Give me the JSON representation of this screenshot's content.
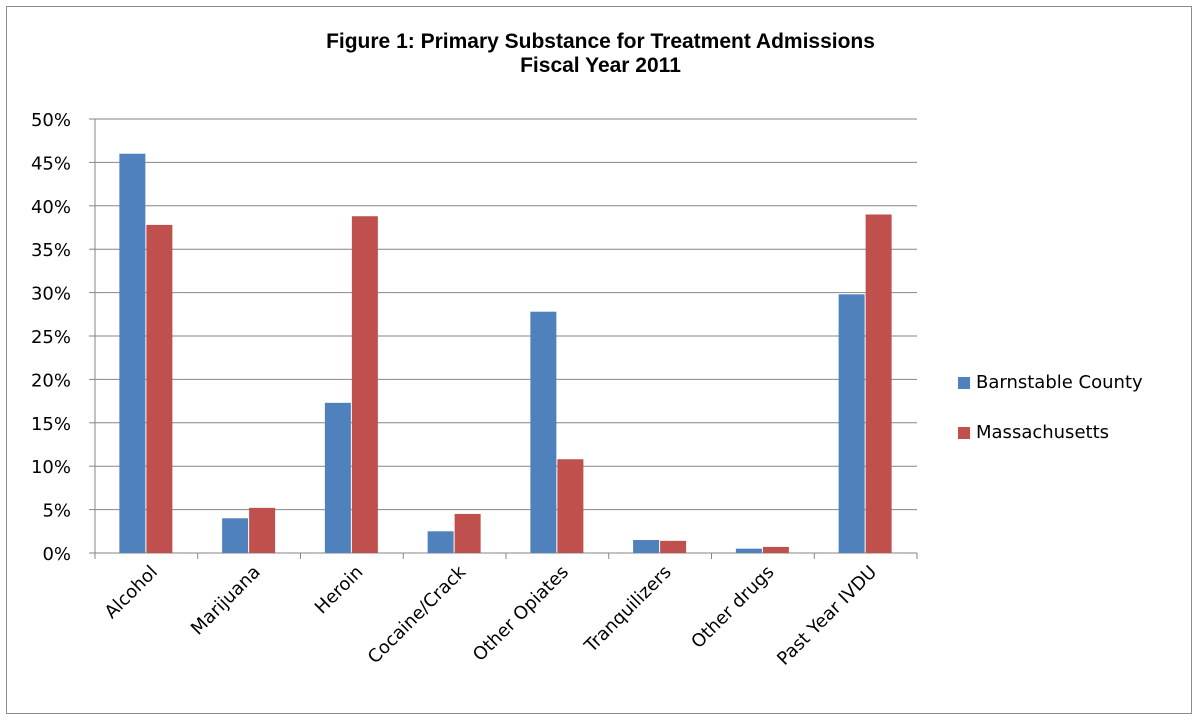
{
  "chart_data": {
    "type": "bar",
    "title": "Figure 1: Primary Substance for Treatment Admissions",
    "subtitle": "Fiscal Year 2011",
    "categories": [
      "Alcohol",
      "Marijuana",
      "Heroin",
      "Cocaine/Crack",
      "Other Opiates",
      "Tranquilizers",
      "Other drugs",
      "Past Year IVDU"
    ],
    "series": [
      {
        "name": "Barnstable County",
        "color": "#4f81bd",
        "values": [
          46,
          4,
          17.3,
          2.5,
          27.8,
          1.5,
          0.5,
          29.8
        ]
      },
      {
        "name": "Massachusetts",
        "color": "#c0504d",
        "values": [
          37.8,
          5.2,
          38.8,
          4.5,
          10.8,
          1.4,
          0.7,
          39
        ]
      }
    ],
    "y_ticks": [
      "0%",
      "5%",
      "10%",
      "15%",
      "20%",
      "25%",
      "30%",
      "35%",
      "40%",
      "45%",
      "50%"
    ],
    "ylim": [
      0,
      50
    ],
    "grid": true,
    "legend_position": "right"
  }
}
